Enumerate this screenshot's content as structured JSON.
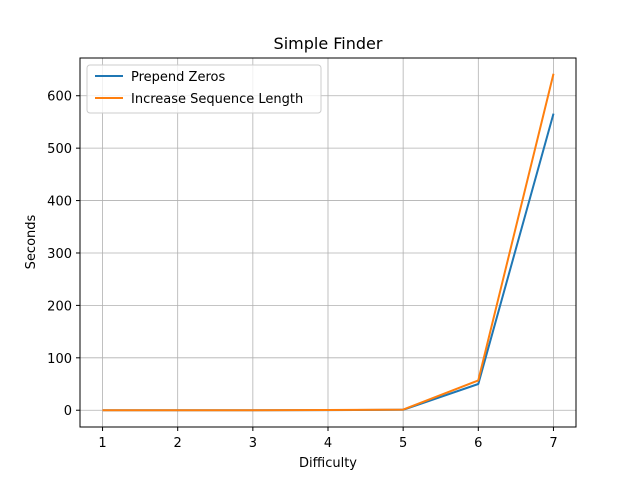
{
  "chart_data": {
    "type": "line",
    "title": "Simple Finder",
    "xlabel": "Difficulty",
    "ylabel": "Seconds",
    "x": [
      1,
      2,
      3,
      4,
      5,
      6,
      7
    ],
    "xticks": [
      "1",
      "2",
      "3",
      "4",
      "5",
      "6",
      "7"
    ],
    "yticks": [
      "0",
      "100",
      "200",
      "300",
      "400",
      "500",
      "600"
    ],
    "ytick_values": [
      0,
      100,
      200,
      300,
      400,
      500,
      600
    ],
    "xlim": [
      0.7,
      7.3
    ],
    "ylim": [
      -32,
      672
    ],
    "grid": true,
    "legend_position": "top-left",
    "series": [
      {
        "name": "Prepend Zeros",
        "color": "#1f77b4",
        "values": [
          0.01,
          0.02,
          0.1,
          0.3,
          0.8,
          50,
          566
        ]
      },
      {
        "name": "Increase Sequence Length",
        "color": "#ff7f0e",
        "values": [
          0.01,
          0.03,
          0.1,
          0.4,
          1.2,
          57,
          642
        ]
      }
    ]
  }
}
